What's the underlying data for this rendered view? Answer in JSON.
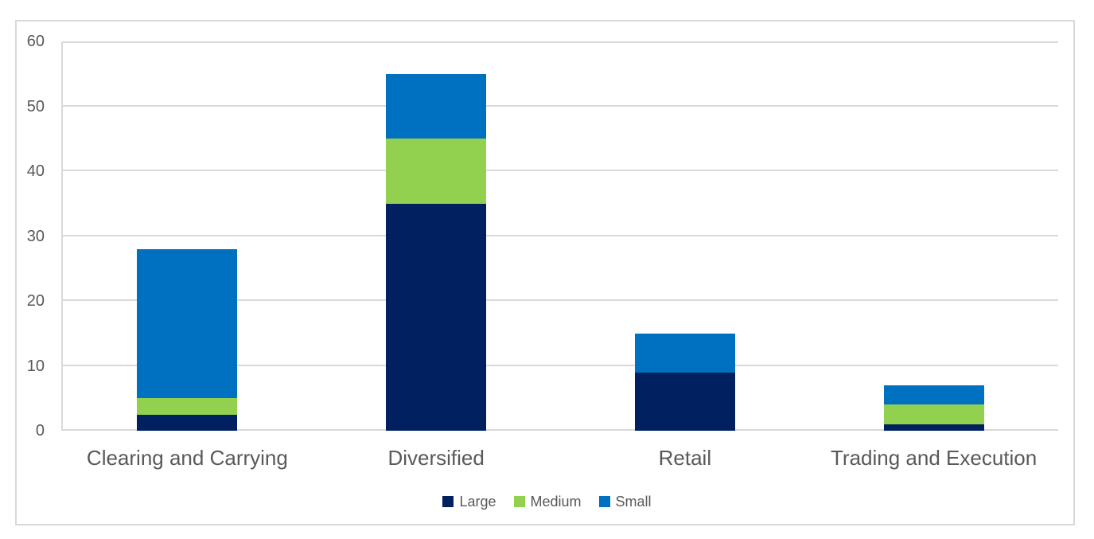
{
  "chart_data": {
    "type": "bar",
    "stacked": true,
    "title": "",
    "xlabel": "",
    "ylabel": "",
    "categories": [
      "Clearing and Carrying",
      "Diversified",
      "Retail",
      "Trading and Execution"
    ],
    "series": [
      {
        "name": "Large",
        "color": "#002060",
        "values": [
          2.5,
          35,
          9,
          1
        ]
      },
      {
        "name": "Medium",
        "color": "#92D050",
        "values": [
          2.5,
          10,
          0,
          3
        ]
      },
      {
        "name": "Small",
        "color": "#0070C0",
        "values": [
          23,
          10,
          6,
          3
        ]
      }
    ],
    "ylim": [
      0,
      60
    ],
    "yticks": [
      0,
      10,
      20,
      30,
      40,
      50,
      60
    ],
    "grid": true,
    "legend_position": "bottom",
    "colors": {
      "gridline": "#D9D9D9",
      "frame_border": "#D9D9D9",
      "axis_text": "#595959",
      "background": "#FFFFFF"
    }
  }
}
